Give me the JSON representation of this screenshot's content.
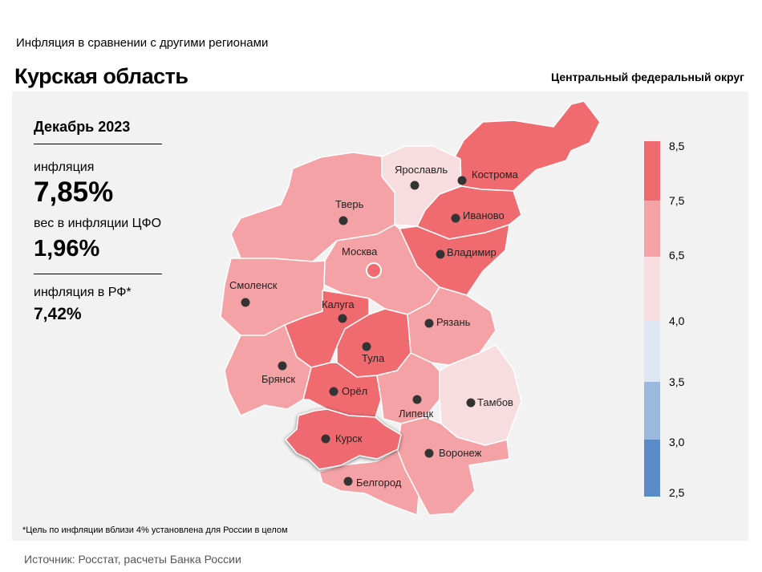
{
  "header": {
    "subtitle": "Инфляция  в сравнении  с другими  регионами",
    "region": "Курская область",
    "district": "Центральный федеральный округ"
  },
  "stats": {
    "period": "Декабрь 2023",
    "inflation_label": "инфляция",
    "inflation_value": "7,85%",
    "weight_label": "вес в инфляции  ЦФО",
    "weight_value": "1,96%",
    "rf_label": "инфляция  в РФ*",
    "rf_value": "7,42%"
  },
  "legend": {
    "ticks": [
      "8,5",
      "7,5",
      "6,5",
      "4,0",
      "3,5",
      "3,0",
      "2,5"
    ],
    "colors": [
      "#ef6b70",
      "#f4a2a5",
      "#f7dde0",
      "#dde6f3",
      "#9db8de",
      "#5a8cc8"
    ]
  },
  "regions": {
    "kostroma": "Кострома",
    "yaroslavl": "Ярославль",
    "ivanovo": "Иваново",
    "vladimir": "Владимир",
    "tver": "Тверь",
    "moscow": "Москва",
    "smolensk": "Смоленск",
    "kaluga": "Калуга",
    "ryazan": "Рязань",
    "tula": "Тула",
    "bryansk": "Брянск",
    "orel": "Орёл",
    "lipetsk": "Липецк",
    "tambov": "Тамбов",
    "kursk": "Курск",
    "voronezh": "Воронеж",
    "belgorod": "Белгород"
  },
  "region_colors": {
    "high": "#ef6b70",
    "mid": "#f4a2a5",
    "low": "#f7dde0"
  },
  "footnote": "*Цель по инфляции вблизи 4% установлена для России в целом",
  "source": "Источник: Росстат, расчеты Банка России"
}
